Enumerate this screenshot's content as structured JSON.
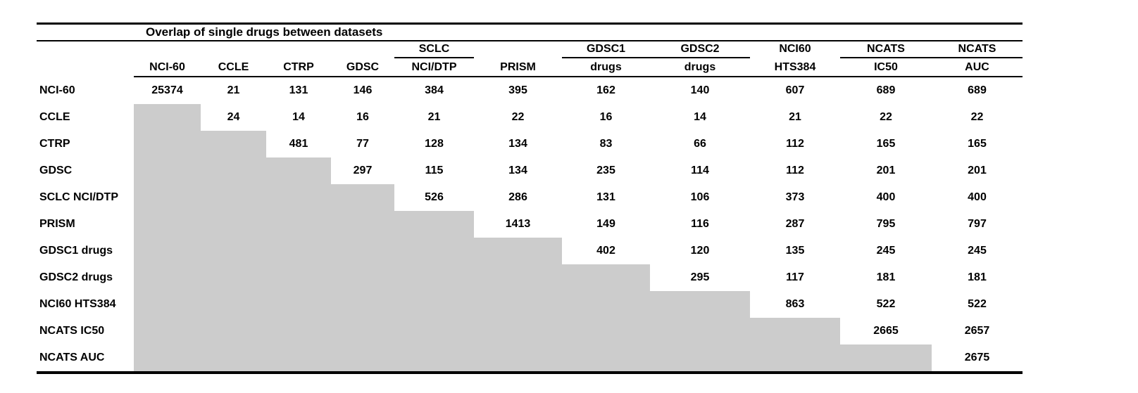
{
  "table": {
    "title": "Overlap of single drugs between datasets",
    "colors": {
      "lower_triangle_fill": "#cccccc",
      "rule_color": "#000000",
      "text_color": "#000000",
      "background": "#ffffff"
    },
    "columns": [
      {
        "top": "",
        "bottom": "NCI-60",
        "top_underline": "none"
      },
      {
        "top": "",
        "bottom": "CCLE",
        "top_underline": "none"
      },
      {
        "top": "",
        "bottom": "CTRP",
        "top_underline": "none"
      },
      {
        "top": "",
        "bottom": "GDSC",
        "top_underline": "none"
      },
      {
        "top": "SCLC",
        "bottom": "NCI/DTP",
        "top_underline": "solo"
      },
      {
        "top": "",
        "bottom": "PRISM",
        "top_underline": "none"
      },
      {
        "top": "GDSC1",
        "bottom": "drugs",
        "top_underline": "pair-left"
      },
      {
        "top": "GDSC2",
        "bottom": "drugs",
        "top_underline": "pair-right"
      },
      {
        "top": "NCI60",
        "bottom": "HTS384",
        "top_underline": "none"
      },
      {
        "top": "NCATS",
        "bottom": "IC50",
        "top_underline": "pair-left"
      },
      {
        "top": "NCATS",
        "bottom": "AUC",
        "top_underline": "pair-right"
      }
    ],
    "rows": [
      {
        "label": "NCI-60",
        "values": [
          25374,
          21,
          131,
          146,
          384,
          395,
          162,
          140,
          607,
          689,
          689
        ]
      },
      {
        "label": "CCLE",
        "values": [
          null,
          24,
          14,
          16,
          21,
          22,
          16,
          14,
          21,
          22,
          22
        ]
      },
      {
        "label": "CTRP",
        "values": [
          null,
          null,
          481,
          77,
          128,
          134,
          83,
          66,
          112,
          165,
          165
        ]
      },
      {
        "label": "GDSC",
        "values": [
          null,
          null,
          null,
          297,
          115,
          134,
          235,
          114,
          112,
          201,
          201
        ]
      },
      {
        "label": "SCLC NCI/DTP",
        "values": [
          null,
          null,
          null,
          null,
          526,
          286,
          131,
          106,
          373,
          400,
          400
        ]
      },
      {
        "label": "PRISM",
        "values": [
          null,
          null,
          null,
          null,
          null,
          1413,
          149,
          116,
          287,
          795,
          797
        ]
      },
      {
        "label": "GDSC1 drugs",
        "values": [
          null,
          null,
          null,
          null,
          null,
          null,
          402,
          120,
          135,
          245,
          245
        ]
      },
      {
        "label": "GDSC2 drugs",
        "values": [
          null,
          null,
          null,
          null,
          null,
          null,
          null,
          295,
          117,
          181,
          181
        ]
      },
      {
        "label": "NCI60 HTS384",
        "values": [
          null,
          null,
          null,
          null,
          null,
          null,
          null,
          null,
          863,
          522,
          522
        ]
      },
      {
        "label": "NCATS IC50",
        "values": [
          null,
          null,
          null,
          null,
          null,
          null,
          null,
          null,
          null,
          2665,
          2657
        ]
      },
      {
        "label": "NCATS AUC",
        "values": [
          null,
          null,
          null,
          null,
          null,
          null,
          null,
          null,
          null,
          null,
          2675
        ]
      }
    ]
  }
}
